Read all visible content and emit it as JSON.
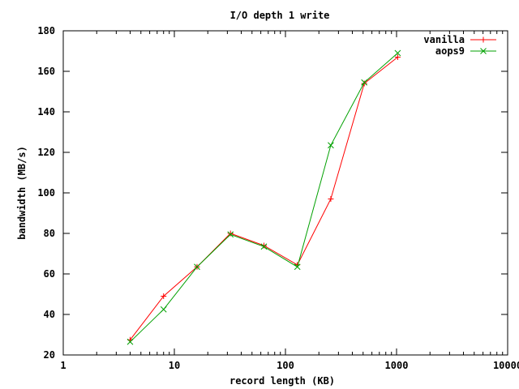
{
  "chart_data": {
    "type": "line",
    "title": "I/O depth 1 write",
    "xlabel": "record length (KB)",
    "ylabel": "bandwidth (MB/s)",
    "xscale": "log",
    "xlim": [
      1,
      10000
    ],
    "ylim": [
      20,
      180
    ],
    "x_ticks": [
      1,
      10,
      100,
      1000,
      10000
    ],
    "x_tick_labels": [
      "1",
      "10",
      "100",
      "1000",
      "10000"
    ],
    "y_ticks": [
      20,
      40,
      60,
      80,
      100,
      120,
      140,
      160,
      180
    ],
    "y_tick_labels": [
      "20",
      "40",
      "60",
      "80",
      "100",
      "120",
      "140",
      "160",
      "180"
    ],
    "legend_position": "top-right",
    "grid": false,
    "x": [
      4,
      8,
      16,
      32,
      64,
      128,
      256,
      512,
      1024
    ],
    "series": [
      {
        "name": "vanilla",
        "color": "#ff0000",
        "marker": "plus",
        "values": [
          27.5,
          49,
          63.5,
          80,
          74,
          64.5,
          97,
          154,
          167
        ]
      },
      {
        "name": "aops9",
        "color": "#00a000",
        "marker": "cross",
        "values": [
          26.5,
          42.5,
          63.5,
          79.5,
          73.5,
          63.5,
          123.5,
          154.5,
          169
        ]
      }
    ]
  }
}
